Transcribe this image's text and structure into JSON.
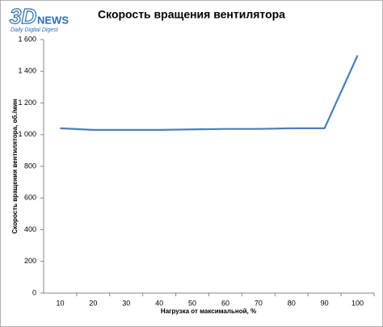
{
  "logo": {
    "brand": "3D",
    "name": "NEWS",
    "tagline": "Daily Digital Digest"
  },
  "chart_data": {
    "type": "line",
    "title": "Скорость вращения вентилятора",
    "x_label": "Нагрузка  от  максимальной,  %",
    "y_label": "Скорость  вращения  вентилятора,  об./мин",
    "categories": [
      "10",
      "20",
      "30",
      "40",
      "50",
      "60",
      "70",
      "80",
      "90",
      "100"
    ],
    "series": [
      {
        "name": "Скорость вращения вентилятора",
        "color": "#4a7ebb",
        "values": [
          1040,
          1030,
          1030,
          1030,
          1033,
          1036,
          1036,
          1040,
          1040,
          1500
        ]
      }
    ],
    "ylim": [
      0,
      1600
    ],
    "yticks": [
      0,
      200,
      400,
      600,
      800,
      {
        "value": 1000,
        "label": "1 000"
      },
      {
        "value": 1200,
        "label": "1 200"
      },
      {
        "value": 1400,
        "label": "1 400"
      },
      {
        "value": 1600,
        "label": "1 600"
      }
    ],
    "grid": false
  }
}
